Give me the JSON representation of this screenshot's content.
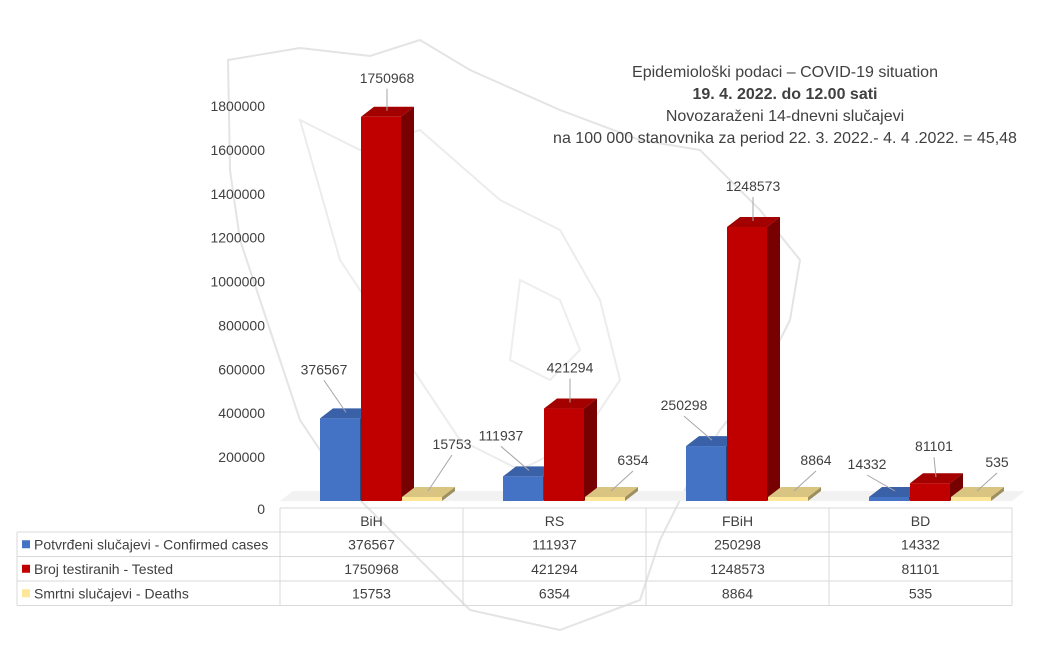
{
  "title": {
    "line1": "Epidemiološki podaci – COVID-19 situation",
    "line2": "19. 4. 2022. do 12.00 sati",
    "line3": "Novozaraženi 14-dnevni slučajevi",
    "line4": "na 100 000 stanovnika za period 22. 3. 2022.- 4. 4 .2022. = 45,48"
  },
  "chart_data": {
    "type": "bar",
    "categories": [
      "BiH",
      "RS",
      "FBiH",
      "BD"
    ],
    "series": [
      {
        "name": "Potvrđeni slučajevi - Confirmed cases",
        "color": "#4472C4",
        "values": [
          376567,
          111937,
          250298,
          14332
        ]
      },
      {
        "name": "Broj testiranih - Tested",
        "color": "#C00000",
        "values": [
          1750968,
          421294,
          1248573,
          81101
        ]
      },
      {
        "name": "Smrtni slučajevi - Deaths",
        "color": "#FFE699",
        "values": [
          15753,
          6354,
          8864,
          535
        ]
      }
    ],
    "yticks": [
      0,
      200000,
      400000,
      600000,
      800000,
      1000000,
      1200000,
      1400000,
      1600000,
      1800000
    ],
    "ylim": [
      0,
      1800000
    ],
    "legend": "data-table-below",
    "grid": false
  }
}
